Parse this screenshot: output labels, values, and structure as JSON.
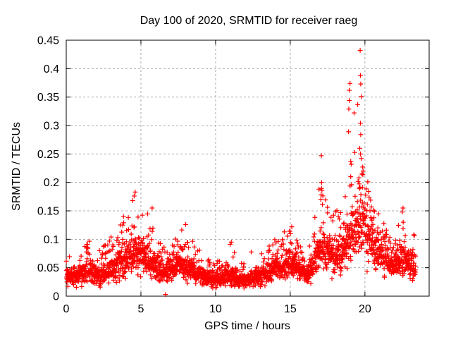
{
  "chart_data": {
    "type": "scatter",
    "title": "Day 100 of 2020, SRMTID for receiver raeg",
    "xlabel": "GPS time / hours",
    "ylabel": "SRMTID / TECUs",
    "xlim": [
      0,
      24.3
    ],
    "ylim": [
      0,
      0.45
    ],
    "x_data_max": 23.4,
    "grid": true,
    "grid_style": "dashed",
    "grid_color": "#ababab",
    "frame_color": "#000000",
    "marker": "plus",
    "marker_color": "#ff0000",
    "marker_size": 7,
    "legend": "none",
    "xticks": [
      {
        "v": 0,
        "label": "0"
      },
      {
        "v": 5,
        "label": "5"
      },
      {
        "v": 10,
        "label": "10"
      },
      {
        "v": 15,
        "label": "15"
      },
      {
        "v": 20,
        "label": "20"
      }
    ],
    "yticks": [
      {
        "v": 0,
        "label": "0"
      },
      {
        "v": 0.05,
        "label": "0.05"
      },
      {
        "v": 0.1,
        "label": "0.1"
      },
      {
        "v": 0.15,
        "label": "0.15"
      },
      {
        "v": 0.2,
        "label": "0.2"
      },
      {
        "v": 0.25,
        "label": "0.25"
      },
      {
        "v": 0.3,
        "label": "0.3"
      },
      {
        "v": 0.35,
        "label": "0.35"
      },
      {
        "v": 0.4,
        "label": "0.4"
      },
      {
        "v": 0.45,
        "label": "0.45"
      }
    ],
    "n_points": 2550,
    "seed": 42,
    "tail_probability": 0.2,
    "tail_exponent": 1.7,
    "envelope": [
      [
        0.0,
        0.038,
        0.085
      ],
      [
        0.5,
        0.033,
        0.07
      ],
      [
        1.0,
        0.04,
        0.095
      ],
      [
        1.5,
        0.044,
        0.1
      ],
      [
        2.0,
        0.034,
        0.075
      ],
      [
        2.5,
        0.04,
        0.09
      ],
      [
        3.0,
        0.046,
        0.105
      ],
      [
        3.5,
        0.055,
        0.125
      ],
      [
        4.0,
        0.065,
        0.15
      ],
      [
        4.6,
        0.08,
        0.183
      ],
      [
        5.0,
        0.07,
        0.16
      ],
      [
        5.5,
        0.062,
        0.15
      ],
      [
        6.0,
        0.05,
        0.105
      ],
      [
        6.5,
        0.042,
        0.085
      ],
      [
        7.0,
        0.048,
        0.1
      ],
      [
        7.6,
        0.056,
        0.115
      ],
      [
        8.1,
        0.05,
        0.125
      ],
      [
        8.5,
        0.04,
        0.095
      ],
      [
        9.0,
        0.034,
        0.08
      ],
      [
        9.5,
        0.03,
        0.065
      ],
      [
        10.0,
        0.029,
        0.06
      ],
      [
        10.5,
        0.032,
        0.08
      ],
      [
        11.0,
        0.034,
        0.095
      ],
      [
        11.5,
        0.03,
        0.07
      ],
      [
        12.0,
        0.029,
        0.06
      ],
      [
        12.4,
        0.031,
        0.08
      ],
      [
        13.0,
        0.034,
        0.075
      ],
      [
        13.5,
        0.042,
        0.095
      ],
      [
        14.0,
        0.048,
        0.1
      ],
      [
        14.5,
        0.054,
        0.11
      ],
      [
        15.1,
        0.058,
        0.12
      ],
      [
        15.6,
        0.045,
        0.095
      ],
      [
        16.1,
        0.032,
        0.062
      ],
      [
        16.5,
        0.05,
        0.12
      ],
      [
        17.1,
        0.09,
        0.225
      ],
      [
        17.4,
        0.08,
        0.18
      ],
      [
        18.0,
        0.065,
        0.15
      ],
      [
        18.5,
        0.075,
        0.165
      ],
      [
        19.0,
        0.1,
        0.3
      ],
      [
        19.5,
        0.12,
        0.35
      ],
      [
        19.8,
        0.125,
        0.29
      ],
      [
        20.1,
        0.11,
        0.23
      ],
      [
        20.5,
        0.095,
        0.175
      ],
      [
        21.0,
        0.075,
        0.14
      ],
      [
        21.5,
        0.06,
        0.12
      ],
      [
        22.0,
        0.055,
        0.115
      ],
      [
        22.5,
        0.065,
        0.15
      ],
      [
        23.0,
        0.055,
        0.125
      ],
      [
        23.4,
        0.048,
        0.105
      ]
    ],
    "outliers": [
      [
        6.65,
        0.003
      ],
      [
        4.45,
        0.168
      ],
      [
        4.55,
        0.176
      ],
      [
        4.62,
        0.183
      ],
      [
        5.75,
        0.155
      ],
      [
        8.0,
        0.126
      ],
      [
        11.05,
        0.095
      ],
      [
        14.6,
        0.113
      ],
      [
        15.1,
        0.122
      ],
      [
        17.05,
        0.17
      ],
      [
        17.08,
        0.247
      ],
      [
        17.1,
        0.2
      ],
      [
        17.12,
        0.186
      ],
      [
        17.15,
        0.161
      ],
      [
        18.9,
        0.289
      ],
      [
        18.92,
        0.329
      ],
      [
        18.95,
        0.344
      ],
      [
        18.95,
        0.362
      ],
      [
        19.0,
        0.374
      ],
      [
        19.05,
        0.237
      ],
      [
        19.05,
        0.21
      ],
      [
        19.08,
        0.232
      ],
      [
        19.1,
        0.196
      ],
      [
        19.6,
        0.208
      ],
      [
        19.65,
        0.26
      ],
      [
        19.68,
        0.432
      ],
      [
        19.7,
        0.388
      ],
      [
        19.7,
        0.304
      ],
      [
        19.7,
        0.25
      ],
      [
        19.72,
        0.373
      ],
      [
        19.72,
        0.284
      ],
      [
        19.75,
        0.351
      ],
      [
        19.75,
        0.242
      ],
      [
        19.8,
        0.215
      ],
      [
        19.85,
        0.227
      ],
      [
        19.88,
        0.22
      ],
      [
        22.5,
        0.148
      ],
      [
        22.55,
        0.155
      ]
    ]
  }
}
